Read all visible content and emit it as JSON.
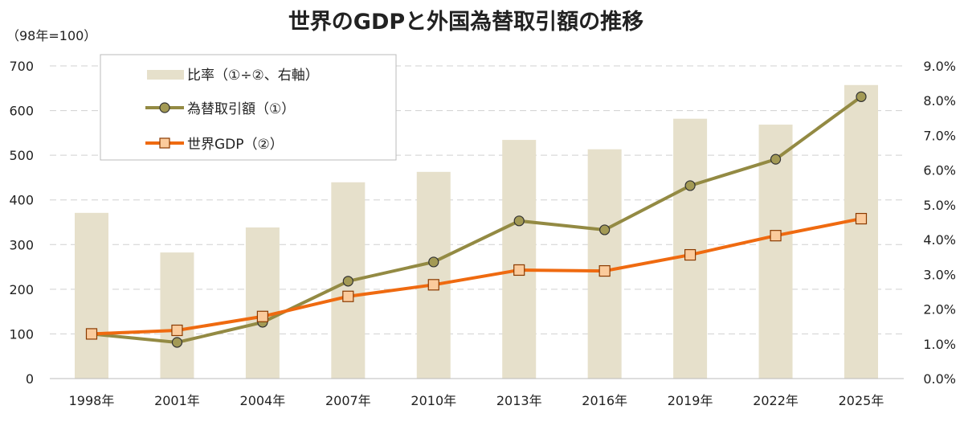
{
  "chart_data": {
    "type": "bar+line",
    "title": "世界のGDPと外国為替取引額の推移",
    "left_axis_label": "（98年=100）",
    "categories": [
      "1998年",
      "2001年",
      "2004年",
      "2007年",
      "2010年",
      "2013年",
      "2016年",
      "2019年",
      "2022年",
      "2025年"
    ],
    "left_axis": {
      "range": [
        0,
        700
      ],
      "ticks": [
        0,
        100,
        200,
        300,
        400,
        500,
        600,
        700
      ]
    },
    "right_axis": {
      "range": [
        0,
        9
      ],
      "ticks": [
        "0.0%",
        "1.0%",
        "2.0%",
        "3.0%",
        "4.0%",
        "5.0%",
        "6.0%",
        "7.0%",
        "8.0%",
        "9.0%"
      ]
    },
    "grid": "horizontal dashed",
    "legend_placement": "top-left",
    "series": [
      {
        "name": "比率（①÷②、右軸）",
        "type": "bar",
        "axis": "right",
        "color": "#e6e0cb",
        "values": [
          4.77,
          3.63,
          4.35,
          5.65,
          5.95,
          6.87,
          6.6,
          7.48,
          7.31,
          8.45
        ]
      },
      {
        "name": "為替取引額（①）",
        "type": "line",
        "marker": "circle",
        "axis": "left",
        "color": "#938a43",
        "marker_fill": "#a39a55",
        "values": [
          100,
          81,
          126,
          218,
          261,
          353,
          333,
          432,
          491,
          631
        ]
      },
      {
        "name": "世界GDP（②）",
        "type": "line",
        "marker": "square",
        "axis": "left",
        "color": "#ef6a10",
        "marker_fill": "#fbcb9c",
        "values": [
          100,
          108,
          139,
          184,
          210,
          243,
          241,
          277,
          320,
          358
        ]
      }
    ]
  }
}
